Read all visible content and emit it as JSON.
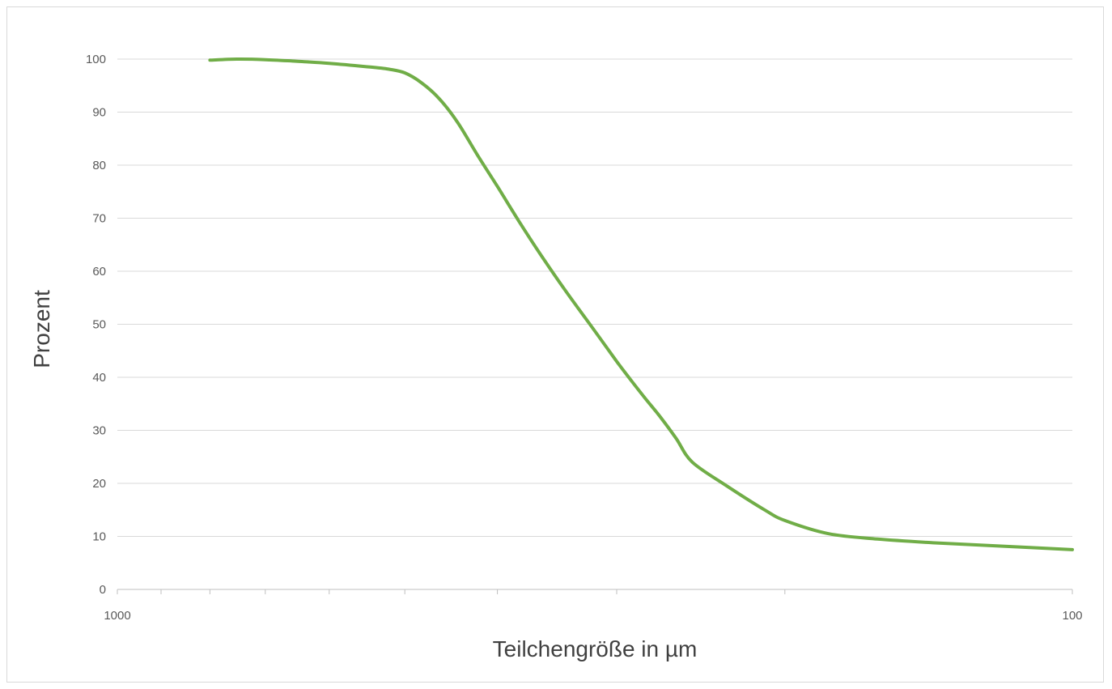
{
  "chart_data": {
    "type": "line",
    "title": "",
    "xlabel": "Teilchengröße in µm",
    "ylabel": "Prozent",
    "x_scale": "log",
    "x_reversed": true,
    "xlim": [
      1000,
      100
    ],
    "ylim": [
      0,
      100
    ],
    "y_ticks": [
      0,
      10,
      20,
      30,
      40,
      50,
      60,
      70,
      80,
      90,
      100
    ],
    "x_tick_labels": [
      {
        "value": 1000,
        "label": "1000"
      },
      {
        "value": 100,
        "label": "100"
      }
    ],
    "x_minor_ticks": [
      900,
      800,
      700,
      600,
      500,
      400,
      300,
      200
    ],
    "grid": "horizontal",
    "legend": "none",
    "series": [
      {
        "color": "#70ad47",
        "x": [
          800,
          750,
          700,
          650,
          600,
          550,
          520,
          500,
          480,
          460,
          440,
          420,
          400,
          380,
          360,
          340,
          320,
          300,
          290,
          280,
          270,
          260,
          250,
          230,
          210,
          200,
          180,
          160,
          140,
          120,
          100
        ],
        "y": [
          99.8,
          100,
          99.9,
          99.6,
          99.2,
          98.6,
          98.1,
          97.4,
          95.5,
          92.5,
          88,
          82,
          76,
          69.5,
          63,
          56.5,
          50,
          43,
          39.5,
          36,
          32.5,
          28.5,
          24,
          19.5,
          15,
          13,
          10.5,
          9.5,
          8.8,
          8.2,
          7.5
        ]
      }
    ]
  }
}
